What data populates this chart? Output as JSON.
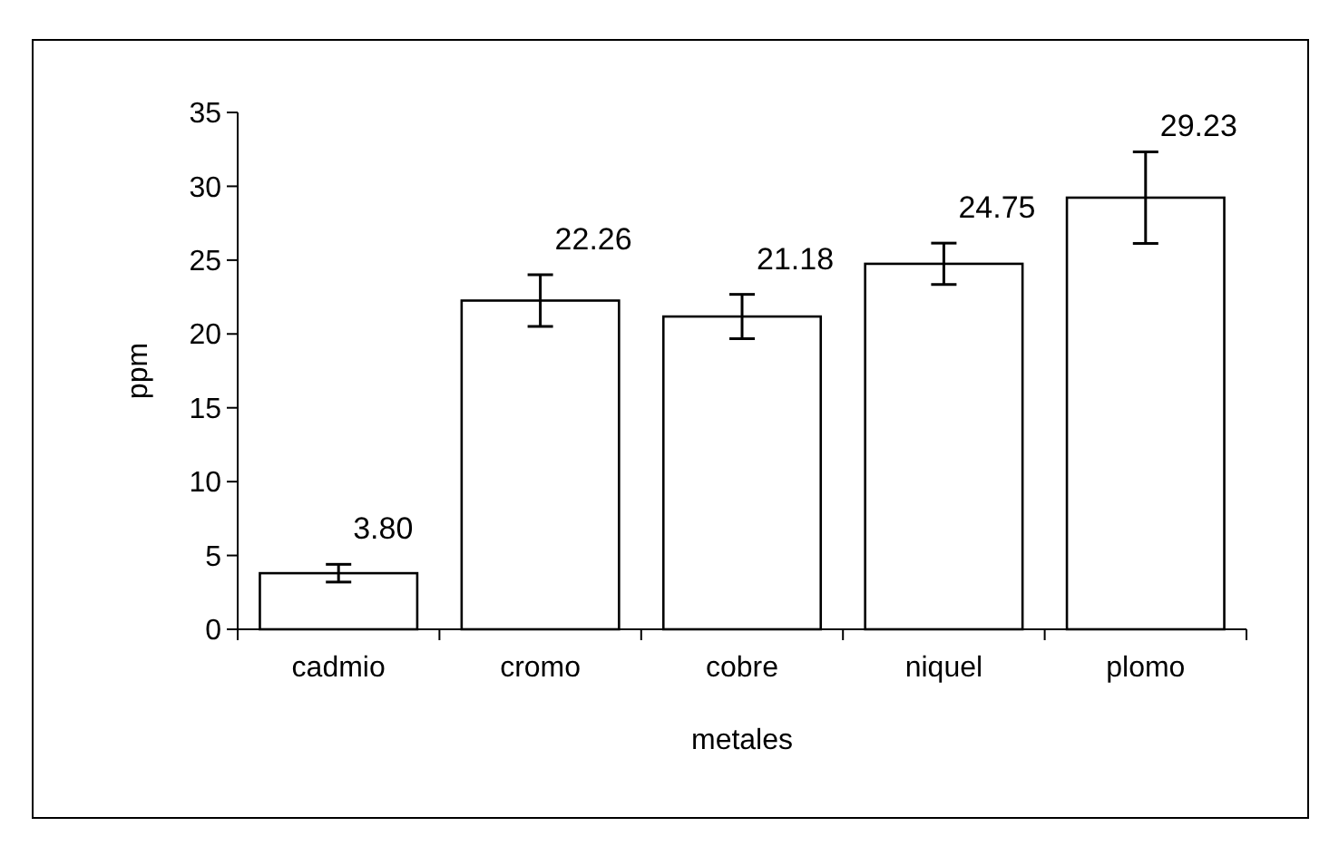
{
  "chart_data": {
    "type": "bar",
    "xlabel": "metales",
    "ylabel": "ppm",
    "categories": [
      "cadmio",
      "cromo",
      "cobre",
      "niquel",
      "plomo"
    ],
    "values": [
      3.8,
      22.26,
      21.18,
      24.75,
      29.23
    ],
    "value_labels": [
      "3.80",
      "22.26",
      "21.18",
      "24.75",
      "29.23"
    ],
    "errors": [
      0.6,
      1.75,
      1.5,
      1.4,
      3.1
    ],
    "color": "#ffffff",
    "ylim": [
      0,
      35
    ],
    "yticks": [
      0,
      5,
      10,
      15,
      20,
      25,
      30,
      35
    ]
  }
}
